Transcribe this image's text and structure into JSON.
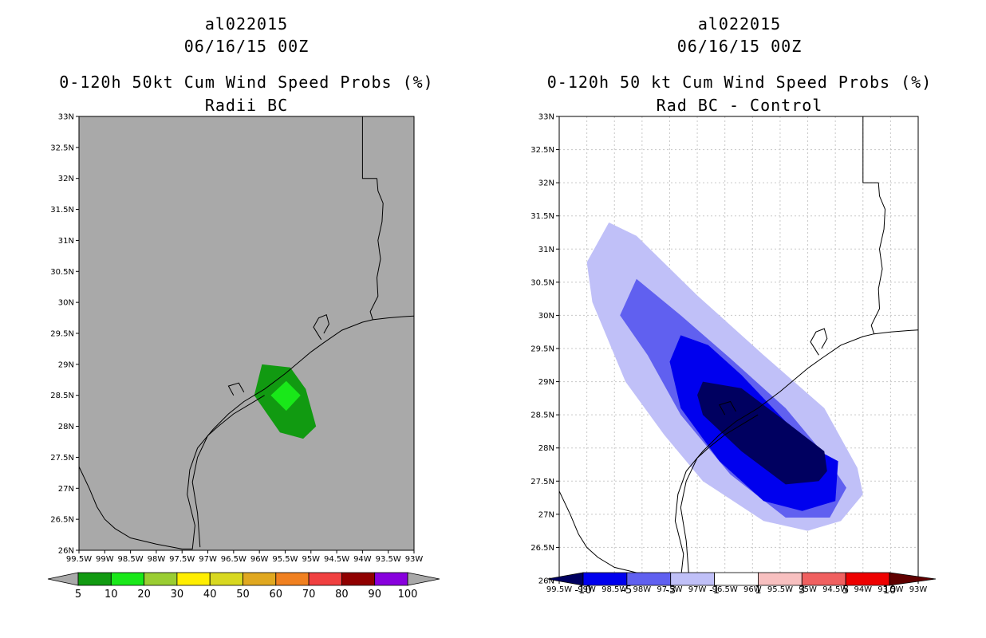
{
  "panels": [
    {
      "id": "left",
      "storm_id": "al022015",
      "datetime": "06/16/15 00Z",
      "title": "0-120h 50kt Cum Wind Speed Probs (%)",
      "subtitle": "Radii BC"
    },
    {
      "id": "right",
      "storm_id": "al022015",
      "datetime": "06/16/15 00Z",
      "title": "0-120h 50 kt Cum Wind Speed Probs (%)",
      "subtitle": "Rad BC - Control"
    }
  ],
  "colors": {
    "map_gray": "#a9a9a9",
    "green_dark": "#119a11",
    "green_light": "#19e819",
    "blue_navy": "#000060",
    "blue_bright": "#0000ee",
    "blue_medium": "#6060f0",
    "blue_light": "#c0c0f8"
  },
  "chart_data": [
    {
      "type": "heatmap",
      "title": "0-120h 50kt Cum Wind Speed Probs (%)",
      "subtitle": "Radii BC",
      "xlim": [
        -99.5,
        -93
      ],
      "ylim": [
        26,
        33
      ],
      "x_ticks": [
        "99.5W",
        "99W",
        "98.5W",
        "98W",
        "97.5W",
        "97W",
        "96.5W",
        "96W",
        "95.5W",
        "95W",
        "94.5W",
        "94W",
        "93.5W",
        "93W"
      ],
      "y_ticks": [
        "26N",
        "26.5N",
        "27N",
        "27.5N",
        "28N",
        "28.5N",
        "29N",
        "29.5N",
        "30N",
        "30.5N",
        "31N",
        "31.5N",
        "32N",
        "32.5N",
        "33N"
      ],
      "colorbar": {
        "labels": [
          "5",
          "10",
          "20",
          "30",
          "40",
          "50",
          "60",
          "70",
          "80",
          "90",
          "100"
        ],
        "colors": [
          "#119a11",
          "#19e819",
          "#9acd32",
          "#ffee00",
          "#d8d820",
          "#e0a820",
          "#f08020",
          "#f04040",
          "#900000",
          "#8800dd"
        ]
      },
      "contours": [
        {
          "level": 5,
          "color_key": "green_dark",
          "points": [
            [
              -95.95,
              29.0
            ],
            [
              -95.4,
              28.95
            ],
            [
              -95.1,
              28.6
            ],
            [
              -94.9,
              28.0
            ],
            [
              -95.15,
              27.8
            ],
            [
              -95.6,
              27.9
            ],
            [
              -96.1,
              28.5
            ]
          ]
        },
        {
          "level": 10,
          "color_key": "green_light",
          "points": [
            [
              -95.48,
              28.73
            ],
            [
              -95.2,
              28.5
            ],
            [
              -95.48,
              28.25
            ],
            [
              -95.78,
              28.5
            ]
          ]
        }
      ]
    },
    {
      "type": "heatmap",
      "title": "0-120h 50 kt Cum Wind Speed Probs (%)",
      "subtitle": "Rad BC - Control",
      "xlim": [
        -99.5,
        -93
      ],
      "ylim": [
        26,
        33
      ],
      "x_ticks": [
        "99.5W",
        "99W",
        "98.5W",
        "98W",
        "97.5W",
        "97W",
        "96.5W",
        "96W",
        "95.5W",
        "95W",
        "94.5W",
        "94W",
        "93.5W",
        "93W"
      ],
      "y_ticks": [
        "26N",
        "26.5N",
        "27N",
        "27.5N",
        "28N",
        "28.5N",
        "29N",
        "29.5N",
        "30N",
        "30.5N",
        "31N",
        "31.5N",
        "32N",
        "32.5N",
        "33N"
      ],
      "colorbar": {
        "labels": [
          "-10",
          "-5",
          "-3",
          "-1",
          "1",
          "3",
          "5",
          "10"
        ],
        "colors": [
          "#000060",
          "#0000ee",
          "#6060f0",
          "#c0c0f8",
          "#ffffff",
          "#f8c0c0",
          "#f06060",
          "#ee0000",
          "#600000"
        ]
      },
      "contours": [
        {
          "level": -1,
          "color_key": "blue_light",
          "points": [
            [
              -98.6,
              31.4
            ],
            [
              -98.1,
              31.2
            ],
            [
              -97.0,
              30.3
            ],
            [
              -95.8,
              29.4
            ],
            [
              -94.7,
              28.6
            ],
            [
              -94.1,
              27.7
            ],
            [
              -94.0,
              27.3
            ],
            [
              -94.4,
              26.9
            ],
            [
              -95.0,
              26.75
            ],
            [
              -95.8,
              26.9
            ],
            [
              -96.9,
              27.5
            ],
            [
              -97.6,
              28.2
            ],
            [
              -98.3,
              29.0
            ],
            [
              -98.9,
              30.2
            ],
            [
              -99.0,
              30.8
            ]
          ]
        },
        {
          "level": -3,
          "color_key": "blue_medium",
          "points": [
            [
              -98.1,
              30.55
            ],
            [
              -97.3,
              30.0
            ],
            [
              -96.4,
              29.35
            ],
            [
              -95.4,
              28.6
            ],
            [
              -94.7,
              27.9
            ],
            [
              -94.3,
              27.4
            ],
            [
              -94.6,
              26.95
            ],
            [
              -95.4,
              26.95
            ],
            [
              -96.4,
              27.6
            ],
            [
              -97.3,
              28.5
            ],
            [
              -97.9,
              29.4
            ],
            [
              -98.4,
              30.0
            ]
          ]
        },
        {
          "level": -5,
          "color_key": "blue_bright",
          "points": [
            [
              -97.3,
              29.7
            ],
            [
              -96.8,
              29.55
            ],
            [
              -96.2,
              29.1
            ],
            [
              -95.4,
              28.4
            ],
            [
              -94.9,
              28.0
            ],
            [
              -94.45,
              27.8
            ],
            [
              -94.5,
              27.2
            ],
            [
              -95.1,
              27.05
            ],
            [
              -95.8,
              27.2
            ],
            [
              -96.6,
              27.8
            ],
            [
              -97.3,
              28.6
            ],
            [
              -97.5,
              29.3
            ]
          ]
        },
        {
          "level": -10,
          "color_key": "blue_navy",
          "points": [
            [
              -96.9,
              29.0
            ],
            [
              -96.2,
              28.9
            ],
            [
              -95.4,
              28.4
            ],
            [
              -94.7,
              27.95
            ],
            [
              -94.65,
              27.65
            ],
            [
              -94.8,
              27.5
            ],
            [
              -95.4,
              27.45
            ],
            [
              -96.2,
              27.95
            ],
            [
              -96.9,
              28.5
            ],
            [
              -97.0,
              28.8
            ]
          ]
        }
      ]
    }
  ]
}
